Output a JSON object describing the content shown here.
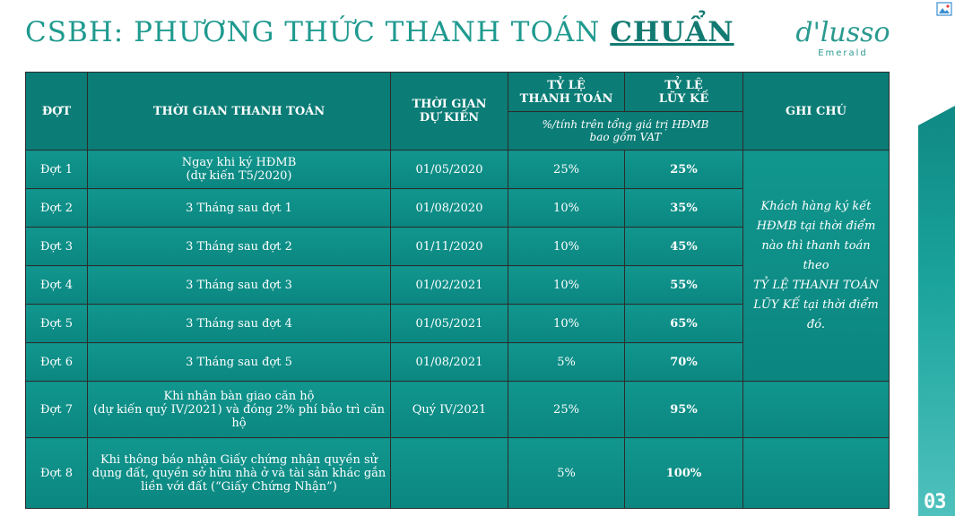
{
  "header": {
    "title_prefix": "CSBH: PHƯƠNG THỨC THANH TOÁN",
    "title_accent": "CHUẨN",
    "brand_logo": "d'lusso",
    "brand_sub": "Emerald",
    "page_number": "03"
  },
  "table": {
    "headers": {
      "dot": "ĐỢT",
      "thoi_gian": "THỜI GIAN THANH TOÁN",
      "du_kien_1": "THỜI GIAN",
      "du_kien_2": "DỰ KIẾN",
      "ty_le_tt_1": "TỶ LỆ",
      "ty_le_tt_2": "THANH TOÁN",
      "luy_ke_1": "TỶ LỆ",
      "luy_ke_2": "LŨY KẾ",
      "ghi_chu": "GHI CHÚ",
      "sub_1": "%/tính trên tổng giá trị HĐMB",
      "sub_2": "bao gồm VAT"
    },
    "rows": [
      {
        "dot": "Đợt 1",
        "time_1": "Ngay khi ký HĐMB",
        "time_2": "(dự kiến T5/2020)",
        "time_3": "",
        "date": "01/05/2020",
        "rate": "25%",
        "cum": "25%"
      },
      {
        "dot": "Đợt 2",
        "time_1": "3 Tháng sau đợt 1",
        "time_2": "",
        "time_3": "",
        "date": "01/08/2020",
        "rate": "10%",
        "cum": "35%"
      },
      {
        "dot": "Đợt 3",
        "time_1": "3 Tháng sau đợt 2",
        "time_2": "",
        "time_3": "",
        "date": "01/11/2020",
        "rate": "10%",
        "cum": "45%"
      },
      {
        "dot": "Đợt 4",
        "time_1": "3 Tháng sau đợt 3",
        "time_2": "",
        "time_3": "",
        "date": "01/02/2021",
        "rate": "10%",
        "cum": "55%"
      },
      {
        "dot": "Đợt 5",
        "time_1": "3 Tháng sau đợt 4",
        "time_2": "",
        "time_3": "",
        "date": "01/05/2021",
        "rate": "10%",
        "cum": "65%"
      },
      {
        "dot": "Đợt 6",
        "time_1": "3 Tháng sau đợt 5",
        "time_2": "",
        "time_3": "",
        "date": "01/08/2021",
        "rate": "5%",
        "cum": "70%"
      },
      {
        "dot": "Đợt 7",
        "time_1": "Khi nhận bàn giao căn hộ",
        "time_2": "(dự kiến quý IV/2021) và đóng 2% phí bảo trì căn",
        "time_3": "hộ",
        "date": "Quý IV/2021",
        "rate": "25%",
        "cum": "95%"
      },
      {
        "dot": "Đợt 8",
        "time_1": "Khi thông báo nhận Giấy chứng nhận quyền sử",
        "time_2": "dụng đất, quyền sở hữu nhà ở và tài sản khác gắn",
        "time_3": "liền với đất (“Giấy Chứng Nhận”)",
        "date": "",
        "rate": "5%",
        "cum": "100%"
      }
    ],
    "note_lines": [
      "Khách hàng ký kết",
      "HĐMB tại thời điểm",
      "nào thì thanh toán theo",
      "TỶ LỆ THANH TOÁN",
      "LŨY KẾ tại thời điểm",
      "đó."
    ]
  },
  "colors": {
    "title": "#1f9a8f",
    "table_bg": "#0c8e86",
    "header_bg": "#0b7c76",
    "side_bar": "#118b86"
  }
}
